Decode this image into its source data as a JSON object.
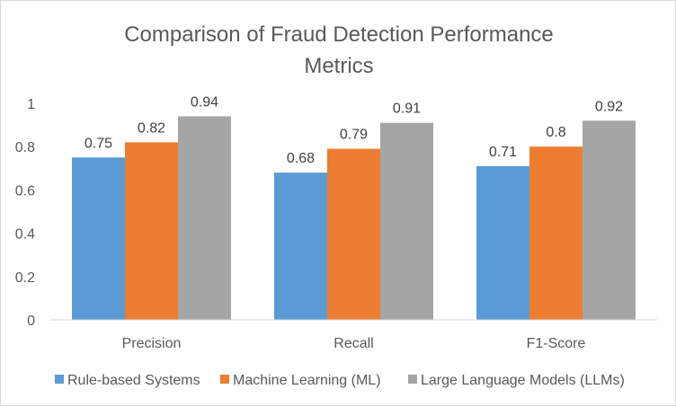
{
  "chart_data": {
    "type": "bar",
    "title_lines": [
      "Comparison of Fraud Detection Performance",
      "Metrics"
    ],
    "categories": [
      "Precision",
      "Recall",
      "F1-Score"
    ],
    "series": [
      {
        "name": "Rule-based Systems",
        "color": "#5b9bd5",
        "values": [
          0.75,
          0.68,
          0.71
        ],
        "labels": [
          "0.75",
          "0.68",
          "0.71"
        ]
      },
      {
        "name": "Machine Learning (ML)",
        "color": "#ed7d31",
        "values": [
          0.82,
          0.79,
          0.8
        ],
        "labels": [
          "0.82",
          "0.79",
          "0.8"
        ]
      },
      {
        "name": "Large Language Models (LLMs)",
        "color": "#a5a5a5",
        "values": [
          0.94,
          0.91,
          0.92
        ],
        "labels": [
          "0.94",
          "0.91",
          "0.92"
        ]
      }
    ],
    "ylim": [
      0,
      1
    ],
    "yticks": [
      0,
      0.2,
      0.4,
      0.6,
      0.8,
      1
    ],
    "ytick_labels": [
      "0",
      "0.2",
      "0.4",
      "0.6",
      "0.8",
      "1"
    ],
    "grid": false,
    "legend_position": "bottom"
  }
}
